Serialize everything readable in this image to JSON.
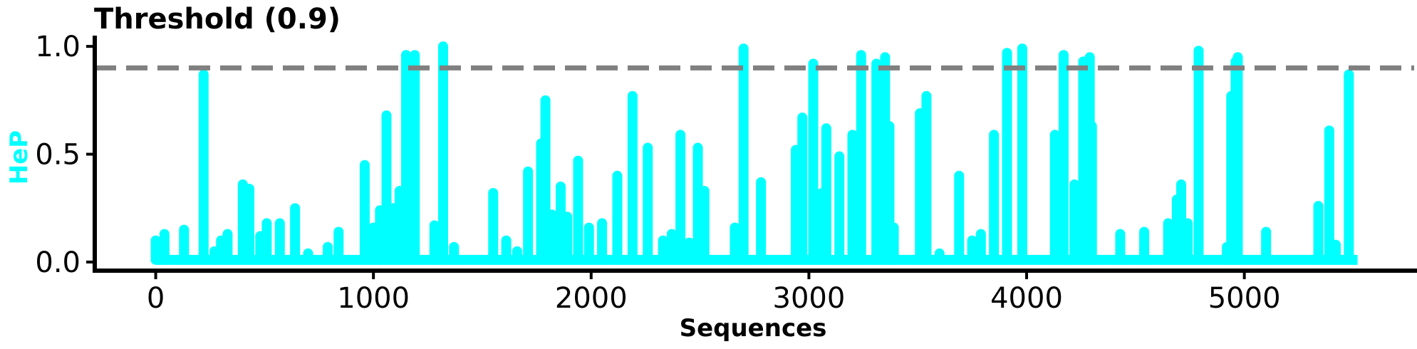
{
  "chart_data": {
    "type": "bar",
    "title": "Threshold (0.9)",
    "xlabel": "Sequences",
    "ylabel": "HeP",
    "xlim": [
      -280,
      5780
    ],
    "ylim": [
      -0.04,
      1.05
    ],
    "x_ticks": [
      0,
      1000,
      2000,
      3000,
      4000,
      5000
    ],
    "x_tick_labels": [
      "0",
      "1000",
      "2000",
      "3000",
      "4000",
      "5000"
    ],
    "y_ticks": [
      0.0,
      0.5,
      1.0
    ],
    "y_tick_labels": [
      "0.0",
      "0.5",
      "1.0"
    ],
    "threshold": 0.9,
    "grid": false,
    "colors": {
      "bars": "#00ffff",
      "threshold_line": "#808080",
      "ylabel": "#00ffff",
      "axes": "#000000"
    },
    "baseline_value": 0.01,
    "x_range": [
      0,
      5520
    ],
    "series": [
      {
        "values": [
          [
            0,
            0.1
          ],
          [
            40,
            0.13
          ],
          [
            130,
            0.15
          ],
          [
            220,
            0.87
          ],
          [
            270,
            0.05
          ],
          [
            300,
            0.1
          ],
          [
            330,
            0.13
          ],
          [
            400,
            0.36
          ],
          [
            430,
            0.34
          ],
          [
            480,
            0.12
          ],
          [
            510,
            0.18
          ],
          [
            570,
            0.18
          ],
          [
            640,
            0.25
          ],
          [
            700,
            0.04
          ],
          [
            790,
            0.07
          ],
          [
            840,
            0.14
          ],
          [
            960,
            0.45
          ],
          [
            1000,
            0.16
          ],
          [
            1030,
            0.24
          ],
          [
            1060,
            0.68
          ],
          [
            1090,
            0.25
          ],
          [
            1120,
            0.33
          ],
          [
            1150,
            0.96
          ],
          [
            1190,
            0.96
          ],
          [
            1280,
            0.17
          ],
          [
            1320,
            1.0
          ],
          [
            1370,
            0.07
          ],
          [
            1550,
            0.32
          ],
          [
            1610,
            0.1
          ],
          [
            1660,
            0.05
          ],
          [
            1710,
            0.42
          ],
          [
            1770,
            0.55
          ],
          [
            1790,
            0.75
          ],
          [
            1820,
            0.22
          ],
          [
            1860,
            0.35
          ],
          [
            1890,
            0.21
          ],
          [
            1940,
            0.47
          ],
          [
            1990,
            0.16
          ],
          [
            2050,
            0.18
          ],
          [
            2120,
            0.4
          ],
          [
            2190,
            0.77
          ],
          [
            2260,
            0.53
          ],
          [
            2330,
            0.1
          ],
          [
            2370,
            0.13
          ],
          [
            2410,
            0.59
          ],
          [
            2450,
            0.09
          ],
          [
            2490,
            0.53
          ],
          [
            2520,
            0.33
          ],
          [
            2660,
            0.16
          ],
          [
            2700,
            0.99
          ],
          [
            2780,
            0.37
          ],
          [
            2940,
            0.52
          ],
          [
            2970,
            0.67
          ],
          [
            3020,
            0.92
          ],
          [
            3060,
            0.32
          ],
          [
            3080,
            0.62
          ],
          [
            3140,
            0.49
          ],
          [
            3200,
            0.59
          ],
          [
            3240,
            0.96
          ],
          [
            3310,
            0.92
          ],
          [
            3350,
            0.95
          ],
          [
            3370,
            0.63
          ],
          [
            3390,
            0.16
          ],
          [
            3510,
            0.69
          ],
          [
            3540,
            0.77
          ],
          [
            3600,
            0.04
          ],
          [
            3690,
            0.4
          ],
          [
            3750,
            0.1
          ],
          [
            3790,
            0.13
          ],
          [
            3850,
            0.59
          ],
          [
            3910,
            0.97
          ],
          [
            3980,
            0.99
          ],
          [
            4130,
            0.59
          ],
          [
            4170,
            0.96
          ],
          [
            4220,
            0.36
          ],
          [
            4260,
            0.93
          ],
          [
            4290,
            0.95
          ],
          [
            4300,
            0.63
          ],
          [
            4430,
            0.13
          ],
          [
            4540,
            0.14
          ],
          [
            4650,
            0.18
          ],
          [
            4690,
            0.29
          ],
          [
            4710,
            0.36
          ],
          [
            4740,
            0.18
          ],
          [
            4790,
            0.98
          ],
          [
            4920,
            0.07
          ],
          [
            4940,
            0.77
          ],
          [
            4960,
            0.93
          ],
          [
            4970,
            0.95
          ],
          [
            5100,
            0.14
          ],
          [
            5340,
            0.26
          ],
          [
            5390,
            0.61
          ],
          [
            5420,
            0.08
          ],
          [
            5480,
            0.87
          ]
        ]
      }
    ]
  }
}
